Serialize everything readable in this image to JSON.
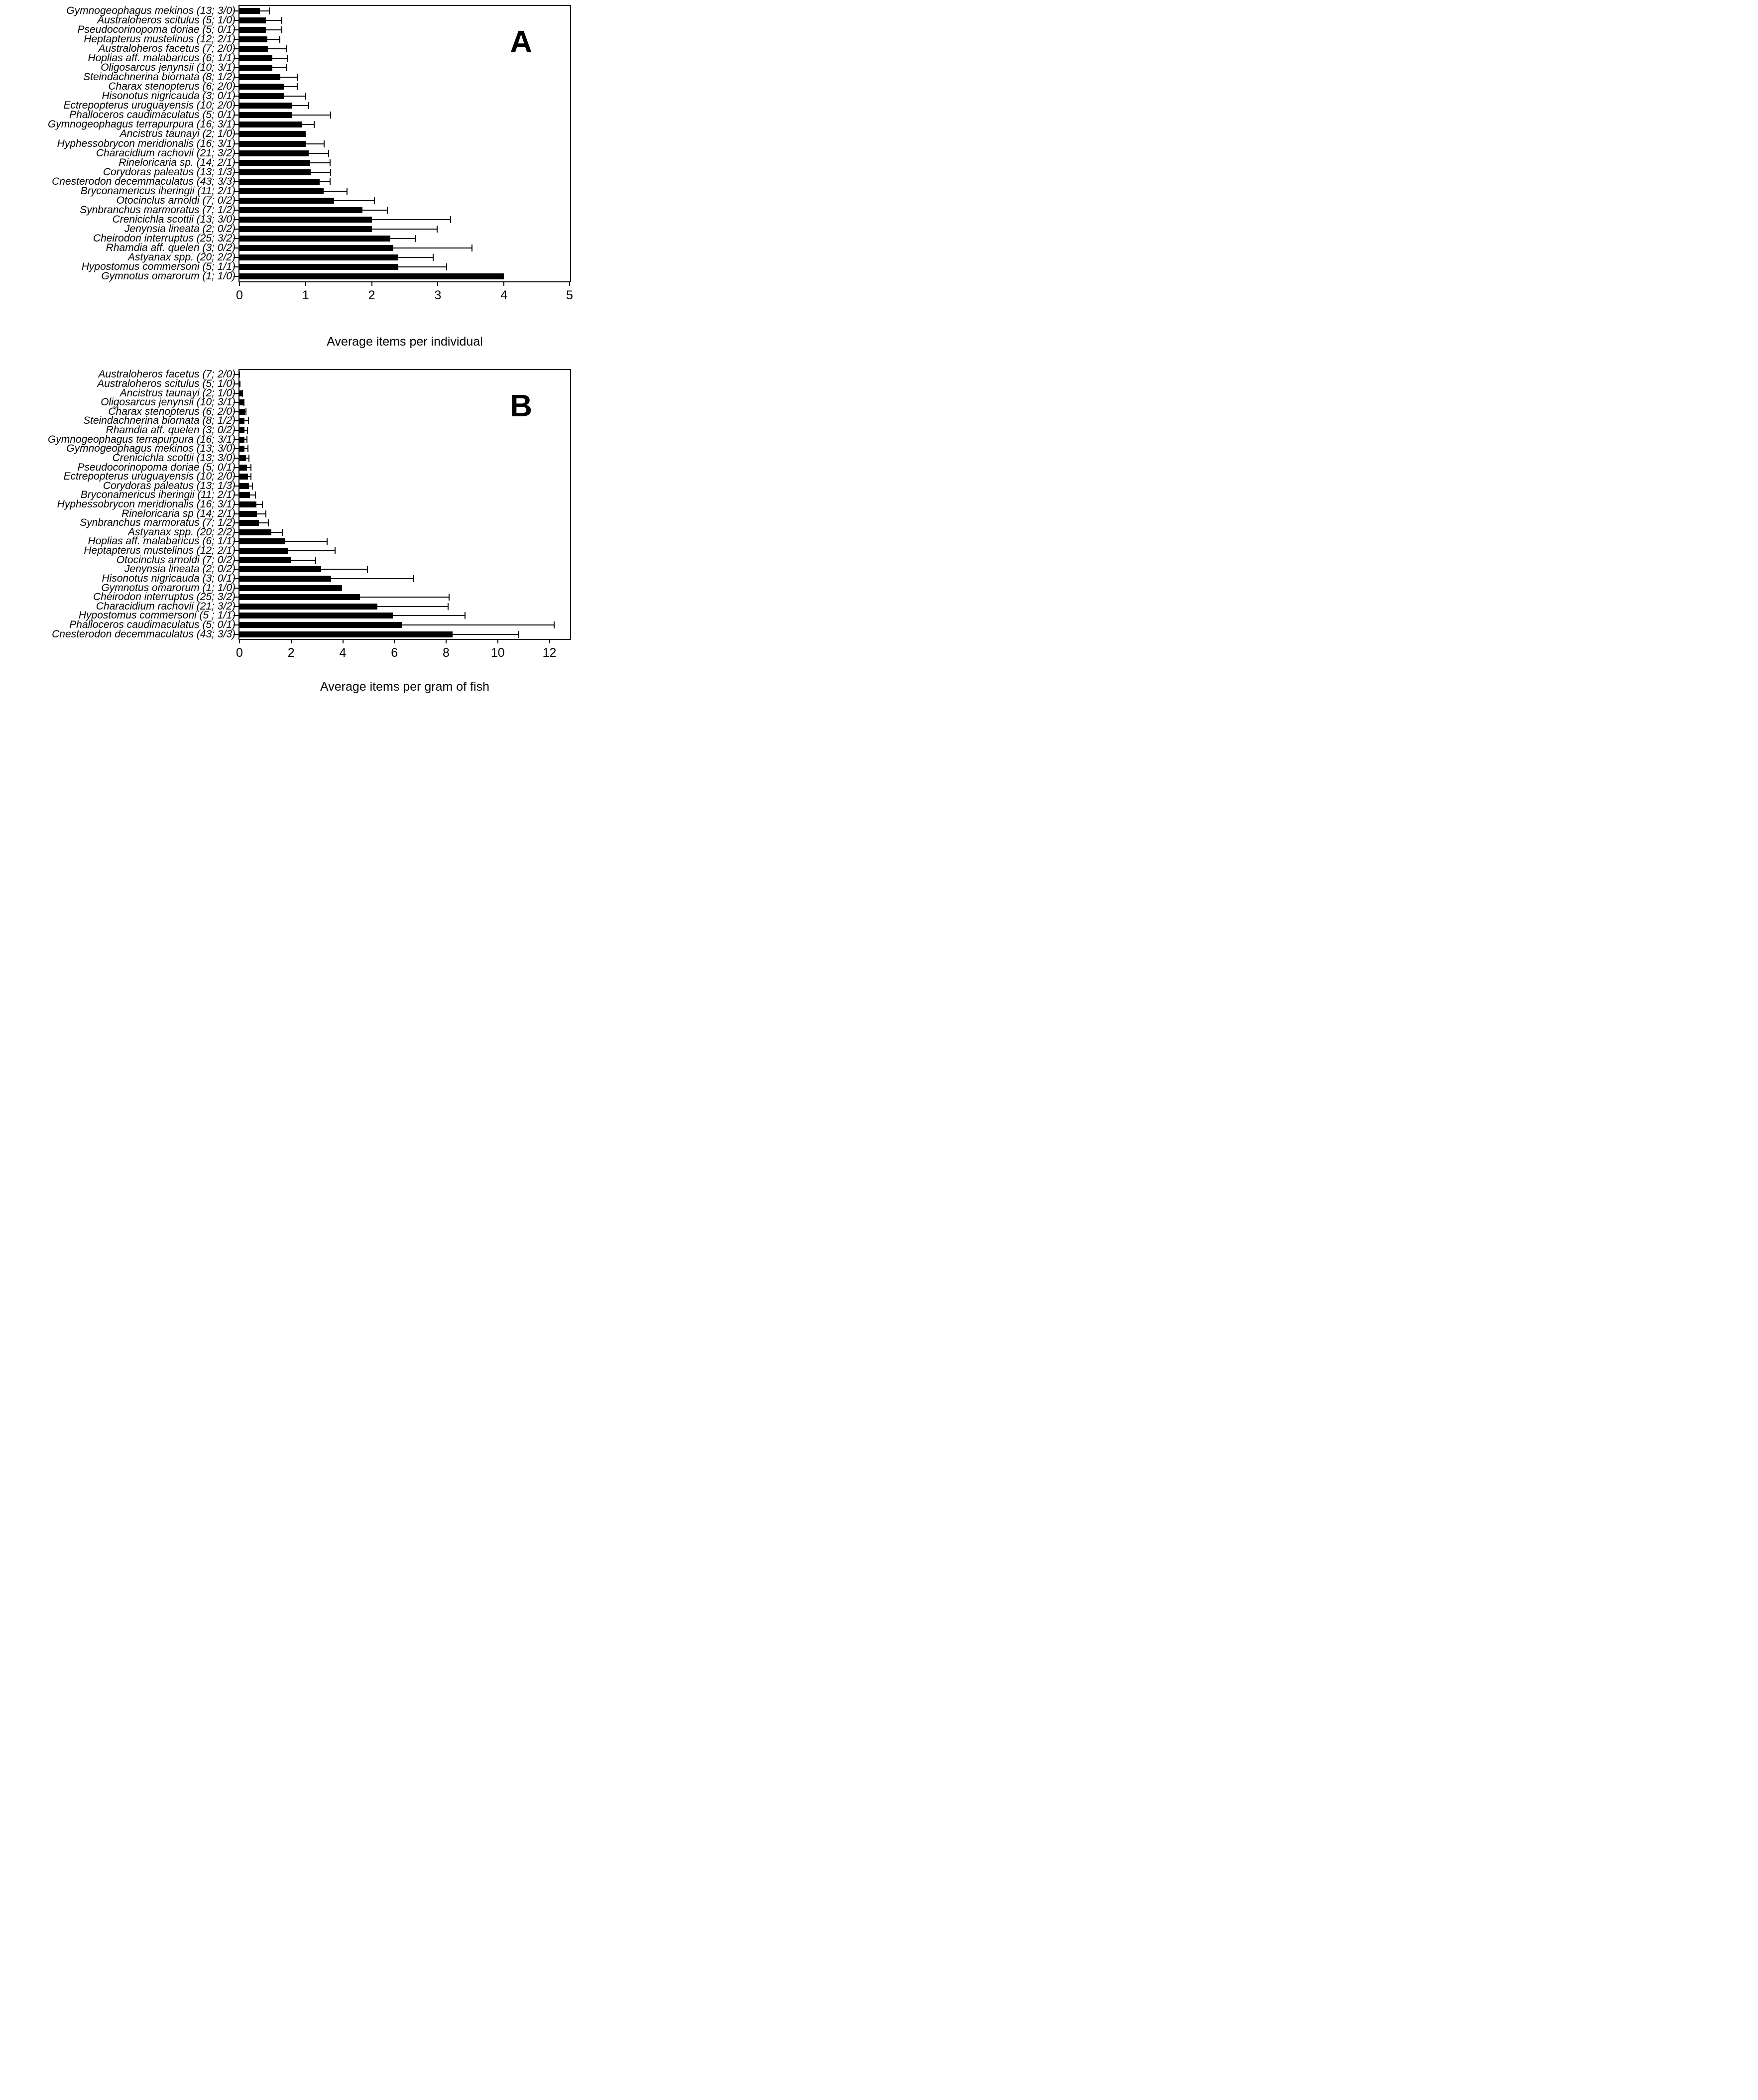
{
  "figure": {
    "background": "#ffffff",
    "bar_color": "#000000",
    "axis_color": "#000000"
  },
  "chart_data": [
    {
      "type": "bar",
      "orientation": "horizontal",
      "panel_letter": "A",
      "xlabel": "Average items per individual",
      "xlim": [
        0,
        5
      ],
      "xticks": [
        0,
        1,
        2,
        3,
        4,
        5
      ],
      "grid": false,
      "legend": false,
      "error_bars": "upper_only",
      "categories": [
        "Gymnogeophagus mekinos (13; 3/0)",
        "Australoheros scitulus (5; 1/0)",
        "Pseudocorinopoma doriae (5; 0/1)",
        "Heptapterus mustelinus (12; 2/1)",
        "Australoheros facetus (7; 2/0)",
        "Hoplias aff. malabaricus (6; 1/1)",
        "Oligosarcus jenynsii (10; 3/1)",
        "Steindachnerina biornata (8; 1/2)",
        "Charax stenopterus (6; 2/0)",
        "Hisonotus nigricauda (3; 0/1)",
        "Ectrepopterus uruguayensis (10; 2/0)",
        "Phalloceros caudimaculatus (5; 0/1)",
        "Gymnogeophagus terrapurpura (16; 3/1)",
        "Ancistrus taunayi (2; 1/0)",
        "Hyphessobrycon meridionalis (16; 3/1)",
        "Characidium rachovii (21; 3/2)",
        "Rineloricaria sp. (14; 2/1)",
        "Corydoras paleatus (13; 1/3)",
        "Cnesterodon decemmaculatus (43; 3/3)",
        "Bryconamericus iheringii (11; 2/1)",
        "Otocinclus arnoldi (7; 0/2)",
        "Synbranchus marmoratus (7; 1/2)",
        "Crenicichla scottii (13; 3/0)",
        "Jenynsia lineata (2; 0/2)",
        "Cheirodon interruptus (25; 3/2)",
        "Rhamdia aff. quelen (3; 0/2)",
        "Astyanax spp. (20; 2/2)",
        "Hypostomus commersoni (5; 1/1)",
        "Gymnotus omarorum (1; 1/0)"
      ],
      "values": [
        0.31,
        0.4,
        0.4,
        0.42,
        0.43,
        0.5,
        0.5,
        0.62,
        0.67,
        0.67,
        0.8,
        0.8,
        0.94,
        1.0,
        1.0,
        1.05,
        1.07,
        1.08,
        1.21,
        1.27,
        1.43,
        1.86,
        2.0,
        2.0,
        2.28,
        2.33,
        2.4,
        2.4,
        4.0
      ],
      "upper_errors": [
        0.45,
        0.64,
        0.64,
        0.61,
        0.71,
        0.72,
        0.71,
        0.87,
        0.88,
        1.0,
        1.05,
        1.38,
        1.13,
        null,
        1.28,
        1.35,
        1.37,
        1.38,
        1.37,
        1.63,
        2.04,
        2.24,
        3.19,
        2.99,
        2.66,
        3.52,
        2.93,
        3.13,
        null
      ]
    },
    {
      "type": "bar",
      "orientation": "horizontal",
      "panel_letter": "B",
      "xlabel": "Average items per gram of fish",
      "xlim": [
        0,
        12.8
      ],
      "xticks": [
        0,
        2,
        4,
        6,
        8,
        10,
        12
      ],
      "grid": false,
      "legend": false,
      "error_bars": "upper_only",
      "categories": [
        "Australoheros facetus (7; 2/0)",
        "Australoheros scitulus (5; 1/0)",
        "Ancistrus taunayi (2; 1/0)",
        "Oligosarcus jenynsii (10; 3/1)",
        "Charax stenopterus (6; 2/0)",
        "Steindachnerina biornata (8; 1/2)",
        "Rhamdia aff. quelen (3; 0/2)",
        "Gymnogeophagus terrapurpura (16; 3/1)",
        "Gymnogeophagus mekinos (13; 3/0)",
        "Crenicichla scottii (13; 3/0)",
        "Pseudocorinopoma doriae (5; 0/1)",
        "Ectrepopterus uruguayensis (10; 2/0)",
        "Corydoras paleatus (13; 1/3)",
        "Bryconamericus iheringii (11; 2/1)",
        "Hyphessobrycon meridionalis (16; 3/1)",
        "Rineloricaria sp (14; 2/1)",
        "Synbranchus marmoratus (7; 1/2)",
        "Astyanax spp. (20; 2/2)",
        "Hoplias aff. malabaricus (6; 1/1)",
        "Heptapterus mustelinus (12; 2/1)",
        "Otocinclus arnoldi (7; 0/2)",
        "Jenynsia lineata (2; 0/2)",
        "Hisonotus nigricauda (3; 0/1)",
        "Gymnotus omarorum (1; 1/0)",
        "Cheirodon interruptus (25; 3/2)",
        "Characidium rachovii (21; 3/2)",
        "Hypostomus commersoni (5 ; 1/1)",
        "Phalloceros caudimaculatus (5; 0/1)",
        "Cnesterodon decemmaculatus (43; 3/3)"
      ],
      "values": [
        0.01,
        0.04,
        0.09,
        0.15,
        0.21,
        0.2,
        0.2,
        0.2,
        0.19,
        0.26,
        0.28,
        0.33,
        0.37,
        0.41,
        0.66,
        0.67,
        0.76,
        1.24,
        1.78,
        1.87,
        2.0,
        3.17,
        3.55,
        3.97,
        4.67,
        5.34,
        5.93,
        6.28,
        8.26
      ],
      "upper_errors": [
        null,
        null,
        0.11,
        0.18,
        0.25,
        0.34,
        0.31,
        0.28,
        0.32,
        0.36,
        0.45,
        0.44,
        0.51,
        0.62,
        0.88,
        1.03,
        1.12,
        1.66,
        3.39,
        3.7,
        2.95,
        4.96,
        6.75,
        null,
        8.12,
        8.08,
        8.74,
        12.19,
        10.81
      ]
    }
  ]
}
